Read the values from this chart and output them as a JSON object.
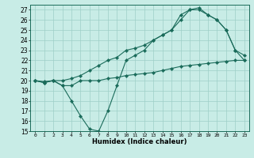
{
  "xlabel": "Humidex (Indice chaleur)",
  "xlim": [
    -0.5,
    23.5
  ],
  "ylim": [
    15,
    27.5
  ],
  "yticks": [
    15,
    16,
    17,
    18,
    19,
    20,
    21,
    22,
    23,
    24,
    25,
    26,
    27
  ],
  "xticks": [
    0,
    1,
    2,
    3,
    4,
    5,
    6,
    7,
    8,
    9,
    10,
    11,
    12,
    13,
    14,
    15,
    16,
    17,
    18,
    19,
    20,
    21,
    22,
    23
  ],
  "bg_color": "#c8ece6",
  "grid_color": "#9ecfc7",
  "line_color": "#1a6b5a",
  "series1_y": [
    20.0,
    19.8,
    20.0,
    19.5,
    19.5,
    20.0,
    20.0,
    20.0,
    20.2,
    20.3,
    20.5,
    20.6,
    20.7,
    20.8,
    21.0,
    21.2,
    21.4,
    21.5,
    21.6,
    21.7,
    21.8,
    21.9,
    22.0,
    22.0
  ],
  "series2_y": [
    20.0,
    19.9,
    20.0,
    20.0,
    20.2,
    20.5,
    21.0,
    21.5,
    22.0,
    22.3,
    23.0,
    23.2,
    23.5,
    24.0,
    24.5,
    25.0,
    26.0,
    27.0,
    27.0,
    26.5,
    26.0,
    25.0,
    23.0,
    22.0
  ],
  "series3_y": [
    20.0,
    19.8,
    20.0,
    19.5,
    18.0,
    16.5,
    15.2,
    15.0,
    17.0,
    19.5,
    22.0,
    22.5,
    23.0,
    24.0,
    24.5,
    25.0,
    26.5,
    27.0,
    27.2,
    26.5,
    26.0,
    25.0,
    23.0,
    22.5
  ]
}
